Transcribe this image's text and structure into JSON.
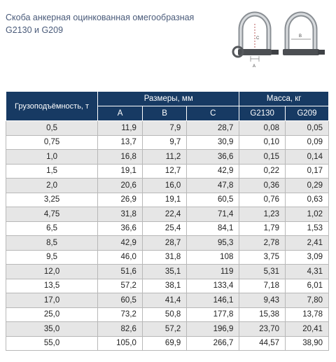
{
  "title_line1": "Скоба анкерная оцинкованная омегообразная",
  "title_line2": "G2130 и G209",
  "diagram_labels": {
    "c": "C",
    "b": "B",
    "a": "A"
  },
  "table": {
    "load_header": "Грузоподъёмность, т",
    "dims_header": "Размеры, мм",
    "mass_header": "Масса, кг",
    "dim_cols": [
      "A",
      "B",
      "C"
    ],
    "mass_cols": [
      "G2130",
      "G209"
    ],
    "rows": [
      [
        "0,5",
        "11,9",
        "7,9",
        "28,7",
        "0,08",
        "0,05"
      ],
      [
        "0,75",
        "13,7",
        "9,7",
        "30,9",
        "0,10",
        "0,09"
      ],
      [
        "1,0",
        "16,8",
        "11,2",
        "36,6",
        "0,15",
        "0,14"
      ],
      [
        "1,5",
        "19,1",
        "12,7",
        "42,9",
        "0,22",
        "0,17"
      ],
      [
        "2,0",
        "20,6",
        "16,0",
        "47,8",
        "0,36",
        "0,29"
      ],
      [
        "3,25",
        "26,9",
        "19,1",
        "60,5",
        "0,76",
        "0,63"
      ],
      [
        "4,75",
        "31,8",
        "22,4",
        "71,4",
        "1,23",
        "1,02"
      ],
      [
        "6,5",
        "36,6",
        "25,4",
        "84,1",
        "1,79",
        "1,53"
      ],
      [
        "8,5",
        "42,9",
        "28,7",
        "95,3",
        "2,78",
        "2,41"
      ],
      [
        "9,5",
        "46,0",
        "31,8",
        "108",
        "3,75",
        "3,09"
      ],
      [
        "12,0",
        "51,6",
        "35,1",
        "119",
        "5,31",
        "4,31"
      ],
      [
        "13,5",
        "57,2",
        "38,1",
        "133,4",
        "7,18",
        "6,01"
      ],
      [
        "17,0",
        "60,5",
        "41,4",
        "146,1",
        "9,43",
        "7,80"
      ],
      [
        "25,0",
        "73,2",
        "50,8",
        "177,8",
        "15,38",
        "13,78"
      ],
      [
        "35,0",
        "82,6",
        "57,2",
        "196,9",
        "23,70",
        "20,41"
      ],
      [
        "55,0",
        "105,0",
        "69,9",
        "266,7",
        "44,57",
        "38,90"
      ]
    ]
  }
}
